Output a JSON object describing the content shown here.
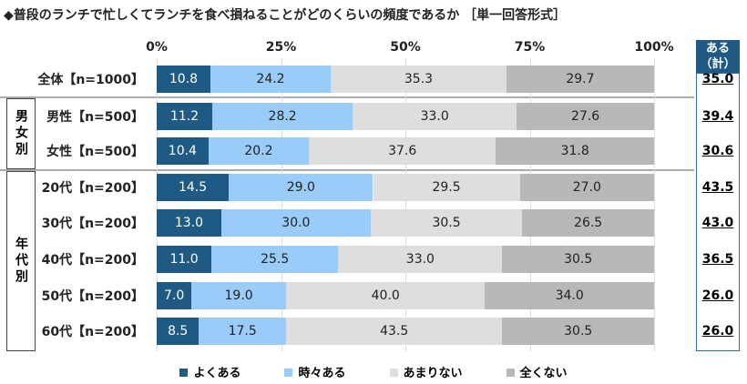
{
  "title": "◆普段のランチで忙しくてランチを食べ損ねることがどのくらいの頻度であるか ［単一回答形式］",
  "chart_data": {
    "type": "bar",
    "orientation": "horizontal",
    "stacked": true,
    "xlim": [
      0,
      100
    ],
    "xticks": [
      "0%",
      "25%",
      "50%",
      "75%",
      "100%"
    ],
    "categories": [
      "全体【n=1000】",
      "男性【n=500】",
      "女性【n=500】",
      "20代【n=200】",
      "30代【n=200】",
      "40代【n=200】",
      "50代【n=200】",
      "60代【n=200】"
    ],
    "series": [
      {
        "name": "よくある",
        "color": "#1f5a85",
        "values": [
          10.8,
          11.2,
          10.4,
          14.5,
          13.0,
          11.0,
          7.0,
          8.5
        ]
      },
      {
        "name": "時々ある",
        "color": "#99ccf8",
        "values": [
          24.2,
          28.2,
          20.2,
          29.0,
          30.0,
          25.5,
          19.0,
          17.5
        ]
      },
      {
        "name": "あまりない",
        "color": "#dedede",
        "values": [
          35.3,
          33.0,
          37.6,
          29.5,
          30.5,
          33.0,
          40.0,
          43.5
        ]
      },
      {
        "name": "全くない",
        "color": "#b8b8b8",
        "values": [
          29.7,
          27.6,
          31.8,
          27.0,
          26.5,
          30.5,
          34.0,
          30.5
        ]
      }
    ],
    "summary": {
      "label": "ある（計）",
      "values": [
        "35.0",
        "39.4",
        "30.6",
        "43.5",
        "43.0",
        "36.5",
        "26.0",
        "26.0"
      ]
    },
    "legend": "bottom"
  },
  "groups": [
    "男女別",
    "年代別"
  ]
}
